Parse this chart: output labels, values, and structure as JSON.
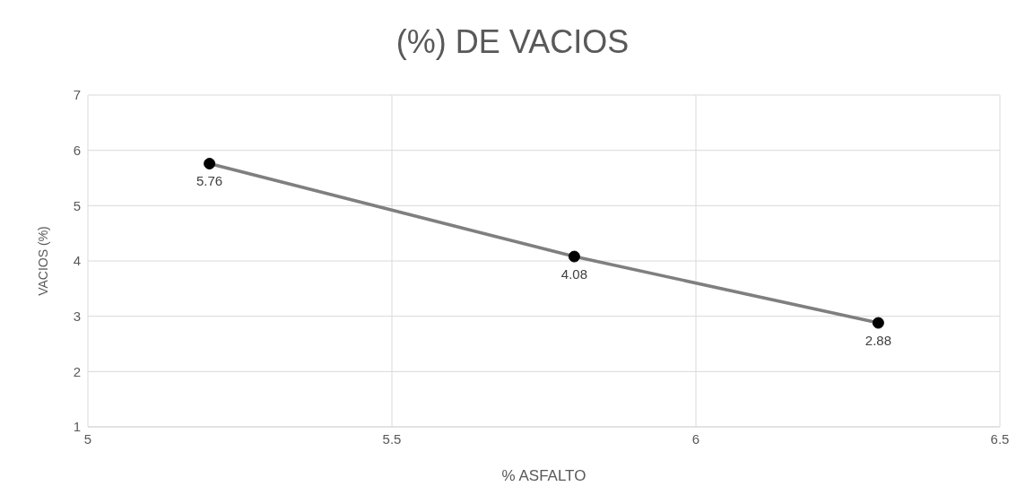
{
  "chart_data": {
    "type": "line",
    "title": "(%) DE VACIOS",
    "xlabel": "% ASFALTO",
    "ylabel": "VACIOS (%)",
    "x": [
      5.2,
      5.8,
      6.3
    ],
    "series": [
      {
        "color": "#7f7f7f",
        "values": [
          5.76,
          4.08,
          2.88
        ]
      }
    ],
    "xlim": [
      5,
      6.5
    ],
    "xticks": [
      5,
      5.5,
      6,
      6.5
    ],
    "ylim": [
      1,
      7
    ],
    "yticks": [
      1,
      2,
      3,
      4,
      5,
      6,
      7
    ],
    "grid": true,
    "marker": "circle",
    "data_labels": true
  }
}
